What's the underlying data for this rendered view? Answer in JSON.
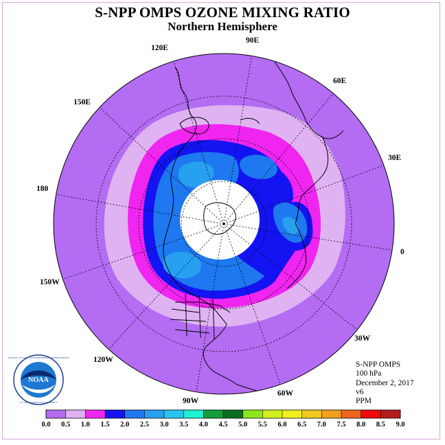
{
  "header": {
    "title": "S-NPP OMPS OZONE MIXING RATIO",
    "subtitle": "Northern Hemisphere"
  },
  "map": {
    "projection": "north polar stereographic",
    "longitude_labels": [
      {
        "text": "90E"
      },
      {
        "text": "60E"
      },
      {
        "text": "30E"
      },
      {
        "text": "0"
      },
      {
        "text": "30W"
      },
      {
        "text": "60W"
      },
      {
        "text": "90W"
      },
      {
        "text": "120W"
      },
      {
        "text": "150W"
      },
      {
        "text": "180"
      },
      {
        "text": "150E"
      },
      {
        "text": "120E"
      }
    ],
    "colors": {
      "background_field": "#b36cf2",
      "band_light": "#dfb3f2",
      "band_magenta": "#f025f0",
      "band_blue": "#1414f2",
      "band_mid_blue": "#1e78f0",
      "band_light_blue": "#28a0f0",
      "polar_night": "#ffffff",
      "coastline": "#000000",
      "graticule": "#000000"
    }
  },
  "info": {
    "instrument": "S-NPP OMPS",
    "level": "100 hPa",
    "date": "December 2, 2017",
    "version": "v6",
    "units": "PPM"
  },
  "colorbar": {
    "ticks": [
      "0.0",
      "0.5",
      "1.0",
      "1.5",
      "2.0",
      "2.5",
      "3.0",
      "3.5",
      "4.0",
      "4.5",
      "5.0",
      "5.5",
      "6.0",
      "6.5",
      "7.0",
      "7.5",
      "8.0",
      "8.5",
      "9.0"
    ],
    "colors": [
      "#b36cf2",
      "#dfb3f2",
      "#f025f0",
      "#1414f2",
      "#1e78f0",
      "#28a0f0",
      "#28c4f0",
      "#1ef0d2",
      "#159c3c",
      "#0a6e1e",
      "#8ce61e",
      "#d2f01e",
      "#f0f01e",
      "#f0c81e",
      "#f0a01e",
      "#f0641e",
      "#f00a0a",
      "#b41e1e"
    ]
  },
  "logo": {
    "center_text": "NOAA",
    "ring_text": "NATIONAL OCEANIC AND ATMOSPHERIC ADMINISTRATION",
    "ring_text_bottom": "U.S. DEPARTMENT OF COMMERCE"
  }
}
